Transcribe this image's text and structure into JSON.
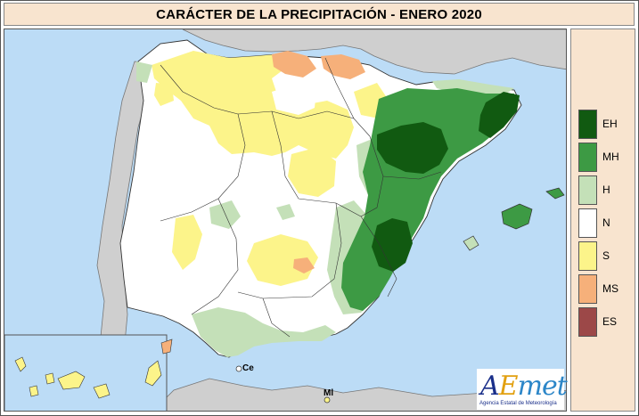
{
  "title": "CARÁCTER DE LA PRECIPITACIÓN - ENERO 2020",
  "legend": {
    "items": [
      {
        "code": "EH",
        "color": "#115a11"
      },
      {
        "code": "MH",
        "color": "#3d9a44"
      },
      {
        "code": "H",
        "color": "#c4e0b8"
      },
      {
        "code": "N",
        "color": "#ffffff"
      },
      {
        "code": "S",
        "color": "#fcf48a"
      },
      {
        "code": "MS",
        "color": "#f6b07a"
      },
      {
        "code": "ES",
        "color": "#9c4848"
      }
    ]
  },
  "map": {
    "sea_color": "#bcdcf6",
    "foreign_land_color": "#cfcfcf",
    "labels": {
      "ceuta": "Ce",
      "melilla": "Ml"
    }
  },
  "logo": {
    "part_a": "A",
    "part_e": "E",
    "part_met": "met",
    "subtitle": "Agencia Estatal de Meteorología"
  }
}
